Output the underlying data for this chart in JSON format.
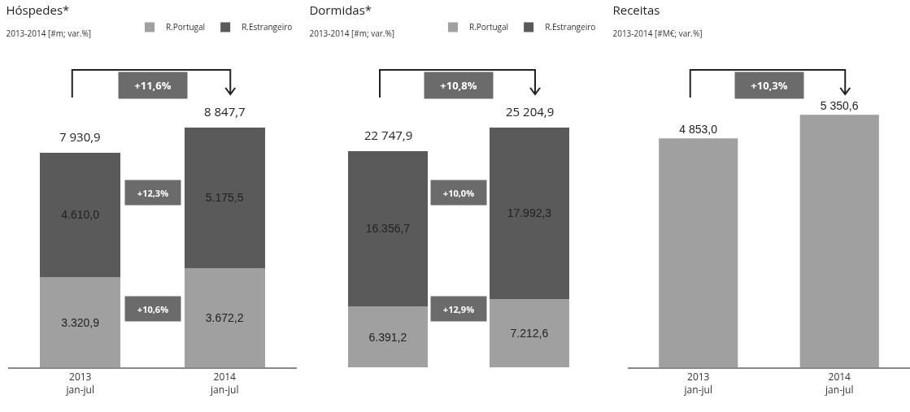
{
  "chart_data": [
    {
      "type": "bar",
      "title": "Hóspedes*",
      "subtitle": "2013-2014 [#m; var.%]",
      "categories": [
        "2013\njan-jul",
        "2014\njan-jul"
      ],
      "stacked": true,
      "legend": "top right",
      "tick_labels": "x",
      "series": [
        {
          "name": "R.Portugal",
          "color": "#a0a0a0",
          "values": [
            3320.9,
            3672.2
          ],
          "value_labels": [
            "3.320,9",
            "3.672,2"
          ]
        },
        {
          "name": "R.Estrangeiro",
          "color": "#5a5a5a",
          "values": [
            4610.0,
            5175.5
          ],
          "value_labels": [
            "4.610,0",
            "5.175,5"
          ]
        }
      ],
      "totals": [
        "7 930,9",
        "8 847,7"
      ],
      "annotations": [
        "+11,6%",
        "+12,3%",
        "+10,6%"
      ]
    },
    {
      "type": "bar",
      "title": "Dormidas*",
      "subtitle": "2013-2014 [#m; var.%]",
      "categories": [
        null,
        null
      ],
      "stacked": true,
      "legend": "top right",
      "tick_labels": false,
      "series": [
        {
          "name": "R.Portugal",
          "color": "#a0a0a0",
          "values": [
            6391.2,
            7212.6
          ],
          "value_labels": [
            "6.391,2",
            "7.212,6"
          ]
        },
        {
          "name": "R.Estrangeiro",
          "color": "#5a5a5a",
          "values": [
            16356.7,
            17992.3
          ],
          "value_labels": [
            "16.356,7",
            "17.992,3"
          ]
        }
      ],
      "totals": [
        "22 747,9",
        "25 204,9"
      ],
      "annotations": [
        "+10,8%",
        "+10,0%",
        "+12,9%"
      ]
    },
    {
      "type": "bar",
      "title": "Receitas",
      "subtitle": "2013-2014 [#M€; var.%]",
      "categories": [
        "2013\njan-jul",
        "2014\njan-jul"
      ],
      "tick_labels": "x",
      "series": [
        {
          "color": "#a0a0a0",
          "values": [
            4853.0,
            5350.6
          ],
          "value_labels": [
            "4 853,0",
            "5 350,6"
          ]
        }
      ],
      "annotations": [
        "+10,3%"
      ]
    }
  ]
}
